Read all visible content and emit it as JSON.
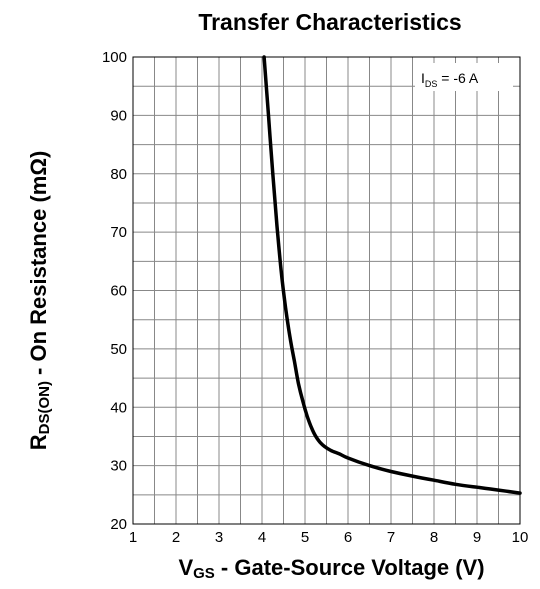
{
  "chart_data": {
    "type": "line",
    "title": "Transfer Characteristics",
    "xlabel": {
      "main": "V",
      "sub": "GS",
      "rest": " - Gate-Source Voltage (V)"
    },
    "ylabel": {
      "main": "R",
      "sub": "DS(ON)",
      "rest": " - On Resistance (mΩ)"
    },
    "xlim": [
      1,
      10
    ],
    "ylim": [
      20,
      100
    ],
    "x_ticks": [
      "1",
      "2",
      "3",
      "4",
      "5",
      "6",
      "7",
      "8",
      "9",
      "10"
    ],
    "y_ticks": [
      "20",
      "30",
      "40",
      "50",
      "60",
      "70",
      "80",
      "90",
      "100"
    ],
    "grid": true,
    "annotation": {
      "main": "I",
      "sub": "DS",
      "rest": " = -6 A"
    },
    "annotation_position": "top-right",
    "line_color": "#000000",
    "series": [
      {
        "x": [
          4.05,
          4.15,
          4.25,
          4.35,
          4.45,
          4.55,
          4.65,
          4.75,
          4.85,
          4.95,
          5.05,
          5.15,
          5.25,
          5.35,
          5.45,
          5.6,
          5.8,
          6.0,
          6.5,
          7.0,
          7.5,
          8.0,
          8.5,
          9.0,
          9.5,
          10.0
        ],
        "y": [
          100,
          90,
          80,
          71,
          63,
          57,
          52,
          48,
          44,
          41,
          38.5,
          36.5,
          35,
          34,
          33.3,
          32.6,
          32.0,
          31.3,
          30.0,
          29.0,
          28.2,
          27.5,
          26.8,
          26.3,
          25.8,
          25.3
        ]
      }
    ]
  }
}
